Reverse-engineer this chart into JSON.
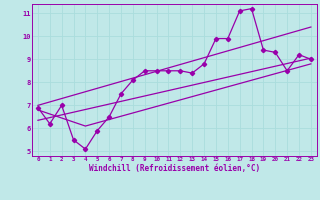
{
  "xlabel": "Windchill (Refroidissement éolien,°C)",
  "xlim": [
    -0.5,
    23.5
  ],
  "ylim": [
    4.8,
    11.4
  ],
  "xticks": [
    0,
    1,
    2,
    3,
    4,
    5,
    6,
    7,
    8,
    9,
    10,
    11,
    12,
    13,
    14,
    15,
    16,
    17,
    18,
    19,
    20,
    21,
    22,
    23
  ],
  "yticks": [
    5,
    6,
    7,
    8,
    9,
    10,
    11
  ],
  "bg_color": "#c0e8e8",
  "line_color": "#9900aa",
  "grid_color": "#aadddd",
  "line1_x": [
    0,
    1,
    2,
    3,
    4,
    5,
    6,
    7,
    8,
    9,
    10,
    11,
    12,
    13,
    14,
    15,
    16,
    17,
    18,
    19,
    20,
    21,
    22,
    23
  ],
  "line1_y": [
    6.9,
    6.2,
    7.0,
    5.5,
    5.1,
    5.9,
    6.5,
    7.5,
    8.1,
    8.5,
    8.5,
    8.5,
    8.5,
    8.4,
    8.8,
    9.9,
    9.9,
    11.1,
    11.2,
    9.4,
    9.3,
    8.5,
    9.2,
    9.0
  ],
  "line2_x": [
    0,
    23
  ],
  "line2_y": [
    7.0,
    10.4
  ],
  "line3_x": [
    0,
    23
  ],
  "line3_y": [
    6.35,
    9.05
  ],
  "line4_x": [
    0,
    4,
    23
  ],
  "line4_y": [
    6.8,
    6.1,
    8.8
  ]
}
